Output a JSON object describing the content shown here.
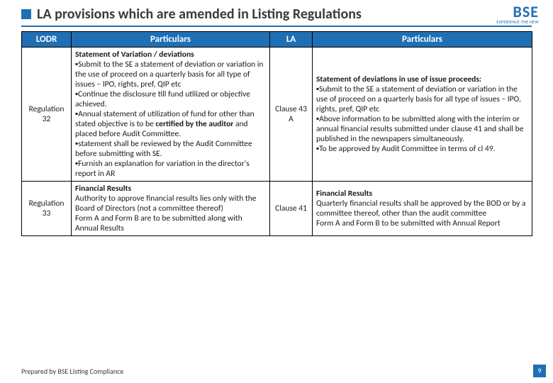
{
  "title": "LA provisions which are amended in Listing Regulations",
  "logo": {
    "main": "BSE",
    "sub": "EXPERIENCE THE NEW"
  },
  "headers": {
    "lodr": "LODR",
    "particulars": "Particulars",
    "la": "LA"
  },
  "rows": [
    {
      "lodr": "Regulation 32",
      "p1_html": "<b>Statement of Variation / deviations</b><br>▪Submit to the SE a statement of deviation or variation in the use of proceed on a quarterly basis for all type of issues – IPO, rights, pref, QIP etc<br>▪Continue the disclosure till fund utilized or objective achieved.<br>▪Annual statement of utilization of fund for other than stated objective is to be <b>certified by the auditor</b> and placed before Audit Committee.<br>▪statement shall be reviewed by the Audit Committee before submitting with SE.<br>▪Furnish an explanation for variation in the director's report in AR",
      "la": "Clause 43 A",
      "p2_html": "<b>Statement of deviations in use of issue proceeds:</b><br>▪Submit to the SE a statement of deviation or variation in the use of proceed on a quarterly basis for all type of issues – IPO, rights, pref, QIP etc<br>▪Above information to be submitted along with the interim or annual financial results submitted under clause 41 and shall be published in the newspapers simultaneously.<br>▪To be approved by Audit Committee in terms of cl 49."
    },
    {
      "lodr": "Regulation 33",
      "p1_html": "<b>Financial Results</b><br>Authority to approve financial results lies only with the Board of Directors  (not a committee thereof)<br>Form A and Form B are to be submitted along with Annual Results",
      "la": "Clause 41",
      "p2_html": "<b>Financial Results</b><br>Quarterly financial results shall be approved by the BOD or by a committee thereof, other than the audit committee<br>Form A and Form B to be submitted with Annual Report"
    }
  ],
  "footer": "Prepared by BSE Listing Compliance",
  "page": "9",
  "colors": {
    "primary": "#1f6fb5",
    "text": "#3b3b3b"
  }
}
